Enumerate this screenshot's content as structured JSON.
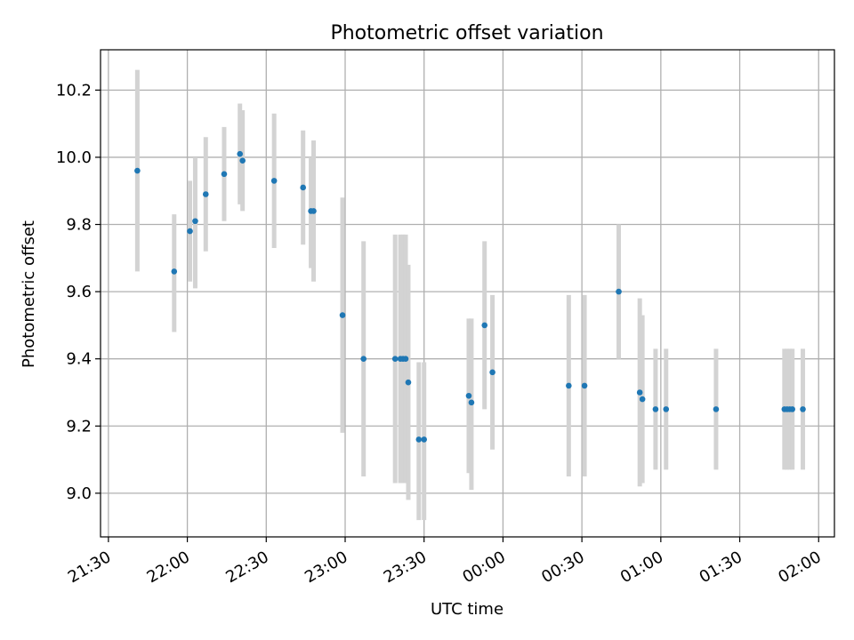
{
  "chart_data": {
    "type": "scatter",
    "title": "Photometric offset variation",
    "xlabel": "UTC time",
    "ylabel": "Photometric offset",
    "x_axis": {
      "kind": "time",
      "range": [
        "21:27",
        "02:06"
      ],
      "ticks": [
        "21:30",
        "22:00",
        "22:30",
        "23:00",
        "23:30",
        "00:00",
        "00:30",
        "01:00",
        "01:30",
        "02:00"
      ],
      "tick_label_rotation": "rotated ~30°"
    },
    "y_axis": {
      "range": [
        8.87,
        10.32
      ],
      "ticks": [
        9.0,
        9.2,
        9.4,
        9.6,
        9.8,
        10.0,
        10.2
      ],
      "tick_labels": [
        "9.0",
        "9.2",
        "9.4",
        "9.6",
        "9.8",
        "10.0",
        "10.2"
      ]
    },
    "grid": true,
    "legend": "none",
    "colors": {
      "point": "#1f77b4",
      "errorbar": "#d3d3d3"
    },
    "series": [
      {
        "points": [
          {
            "t": "21:41",
            "y": 9.96,
            "lo": 9.66,
            "hi": 10.26
          },
          {
            "t": "21:55",
            "y": 9.66,
            "lo": 9.48,
            "hi": 9.83
          },
          {
            "t": "22:01",
            "y": 9.78,
            "lo": 9.63,
            "hi": 9.93
          },
          {
            "t": "22:03",
            "y": 9.81,
            "lo": 9.61,
            "hi": 10.0
          },
          {
            "t": "22:07",
            "y": 9.89,
            "lo": 9.72,
            "hi": 10.06
          },
          {
            "t": "22:14",
            "y": 9.95,
            "lo": 9.81,
            "hi": 10.09
          },
          {
            "t": "22:20",
            "y": 10.01,
            "lo": 9.86,
            "hi": 10.16
          },
          {
            "t": "22:21",
            "y": 9.99,
            "lo": 9.84,
            "hi": 10.14
          },
          {
            "t": "22:33",
            "y": 9.93,
            "lo": 9.73,
            "hi": 10.13
          },
          {
            "t": "22:44",
            "y": 9.91,
            "lo": 9.74,
            "hi": 10.08
          },
          {
            "t": "22:47",
            "y": 9.84,
            "lo": 9.67,
            "hi": 10.0
          },
          {
            "t": "22:48",
            "y": 9.84,
            "lo": 9.63,
            "hi": 10.05
          },
          {
            "t": "22:59",
            "y": 9.53,
            "lo": 9.18,
            "hi": 9.88
          },
          {
            "t": "23:07",
            "y": 9.4,
            "lo": 9.05,
            "hi": 9.75
          },
          {
            "t": "23:19",
            "y": 9.4,
            "lo": 9.03,
            "hi": 9.77
          },
          {
            "t": "23:21",
            "y": 9.4,
            "lo": 9.03,
            "hi": 9.77
          },
          {
            "t": "23:22",
            "y": 9.4,
            "lo": 9.03,
            "hi": 9.77
          },
          {
            "t": "23:23",
            "y": 9.4,
            "lo": 9.03,
            "hi": 9.77
          },
          {
            "t": "23:24",
            "y": 9.33,
            "lo": 8.98,
            "hi": 9.68
          },
          {
            "t": "23:28",
            "y": 9.16,
            "lo": 8.92,
            "hi": 9.39
          },
          {
            "t": "23:30",
            "y": 9.16,
            "lo": 8.92,
            "hi": 9.39
          },
          {
            "t": "23:47",
            "y": 9.29,
            "lo": 9.06,
            "hi": 9.52
          },
          {
            "t": "23:48",
            "y": 9.27,
            "lo": 9.01,
            "hi": 9.52
          },
          {
            "t": "23:53",
            "y": 9.5,
            "lo": 9.25,
            "hi": 9.75
          },
          {
            "t": "23:56",
            "y": 9.36,
            "lo": 9.13,
            "hi": 9.59
          },
          {
            "t": "00:25",
            "y": 9.32,
            "lo": 9.05,
            "hi": 9.59
          },
          {
            "t": "00:31",
            "y": 9.32,
            "lo": 9.05,
            "hi": 9.59
          },
          {
            "t": "00:44",
            "y": 9.6,
            "lo": 9.4,
            "hi": 9.8
          },
          {
            "t": "00:52",
            "y": 9.3,
            "lo": 9.02,
            "hi": 9.58
          },
          {
            "t": "00:53",
            "y": 9.28,
            "lo": 9.03,
            "hi": 9.53
          },
          {
            "t": "00:58",
            "y": 9.25,
            "lo": 9.07,
            "hi": 9.43
          },
          {
            "t": "01:02",
            "y": 9.25,
            "lo": 9.07,
            "hi": 9.43
          },
          {
            "t": "01:21",
            "y": 9.25,
            "lo": 9.07,
            "hi": 9.43
          },
          {
            "t": "01:47",
            "y": 9.25,
            "lo": 9.07,
            "hi": 9.43
          },
          {
            "t": "01:48",
            "y": 9.25,
            "lo": 9.07,
            "hi": 9.43
          },
          {
            "t": "01:49",
            "y": 9.25,
            "lo": 9.07,
            "hi": 9.43
          },
          {
            "t": "01:50",
            "y": 9.25,
            "lo": 9.07,
            "hi": 9.43
          },
          {
            "t": "01:54",
            "y": 9.25,
            "lo": 9.07,
            "hi": 9.43
          }
        ]
      }
    ]
  }
}
